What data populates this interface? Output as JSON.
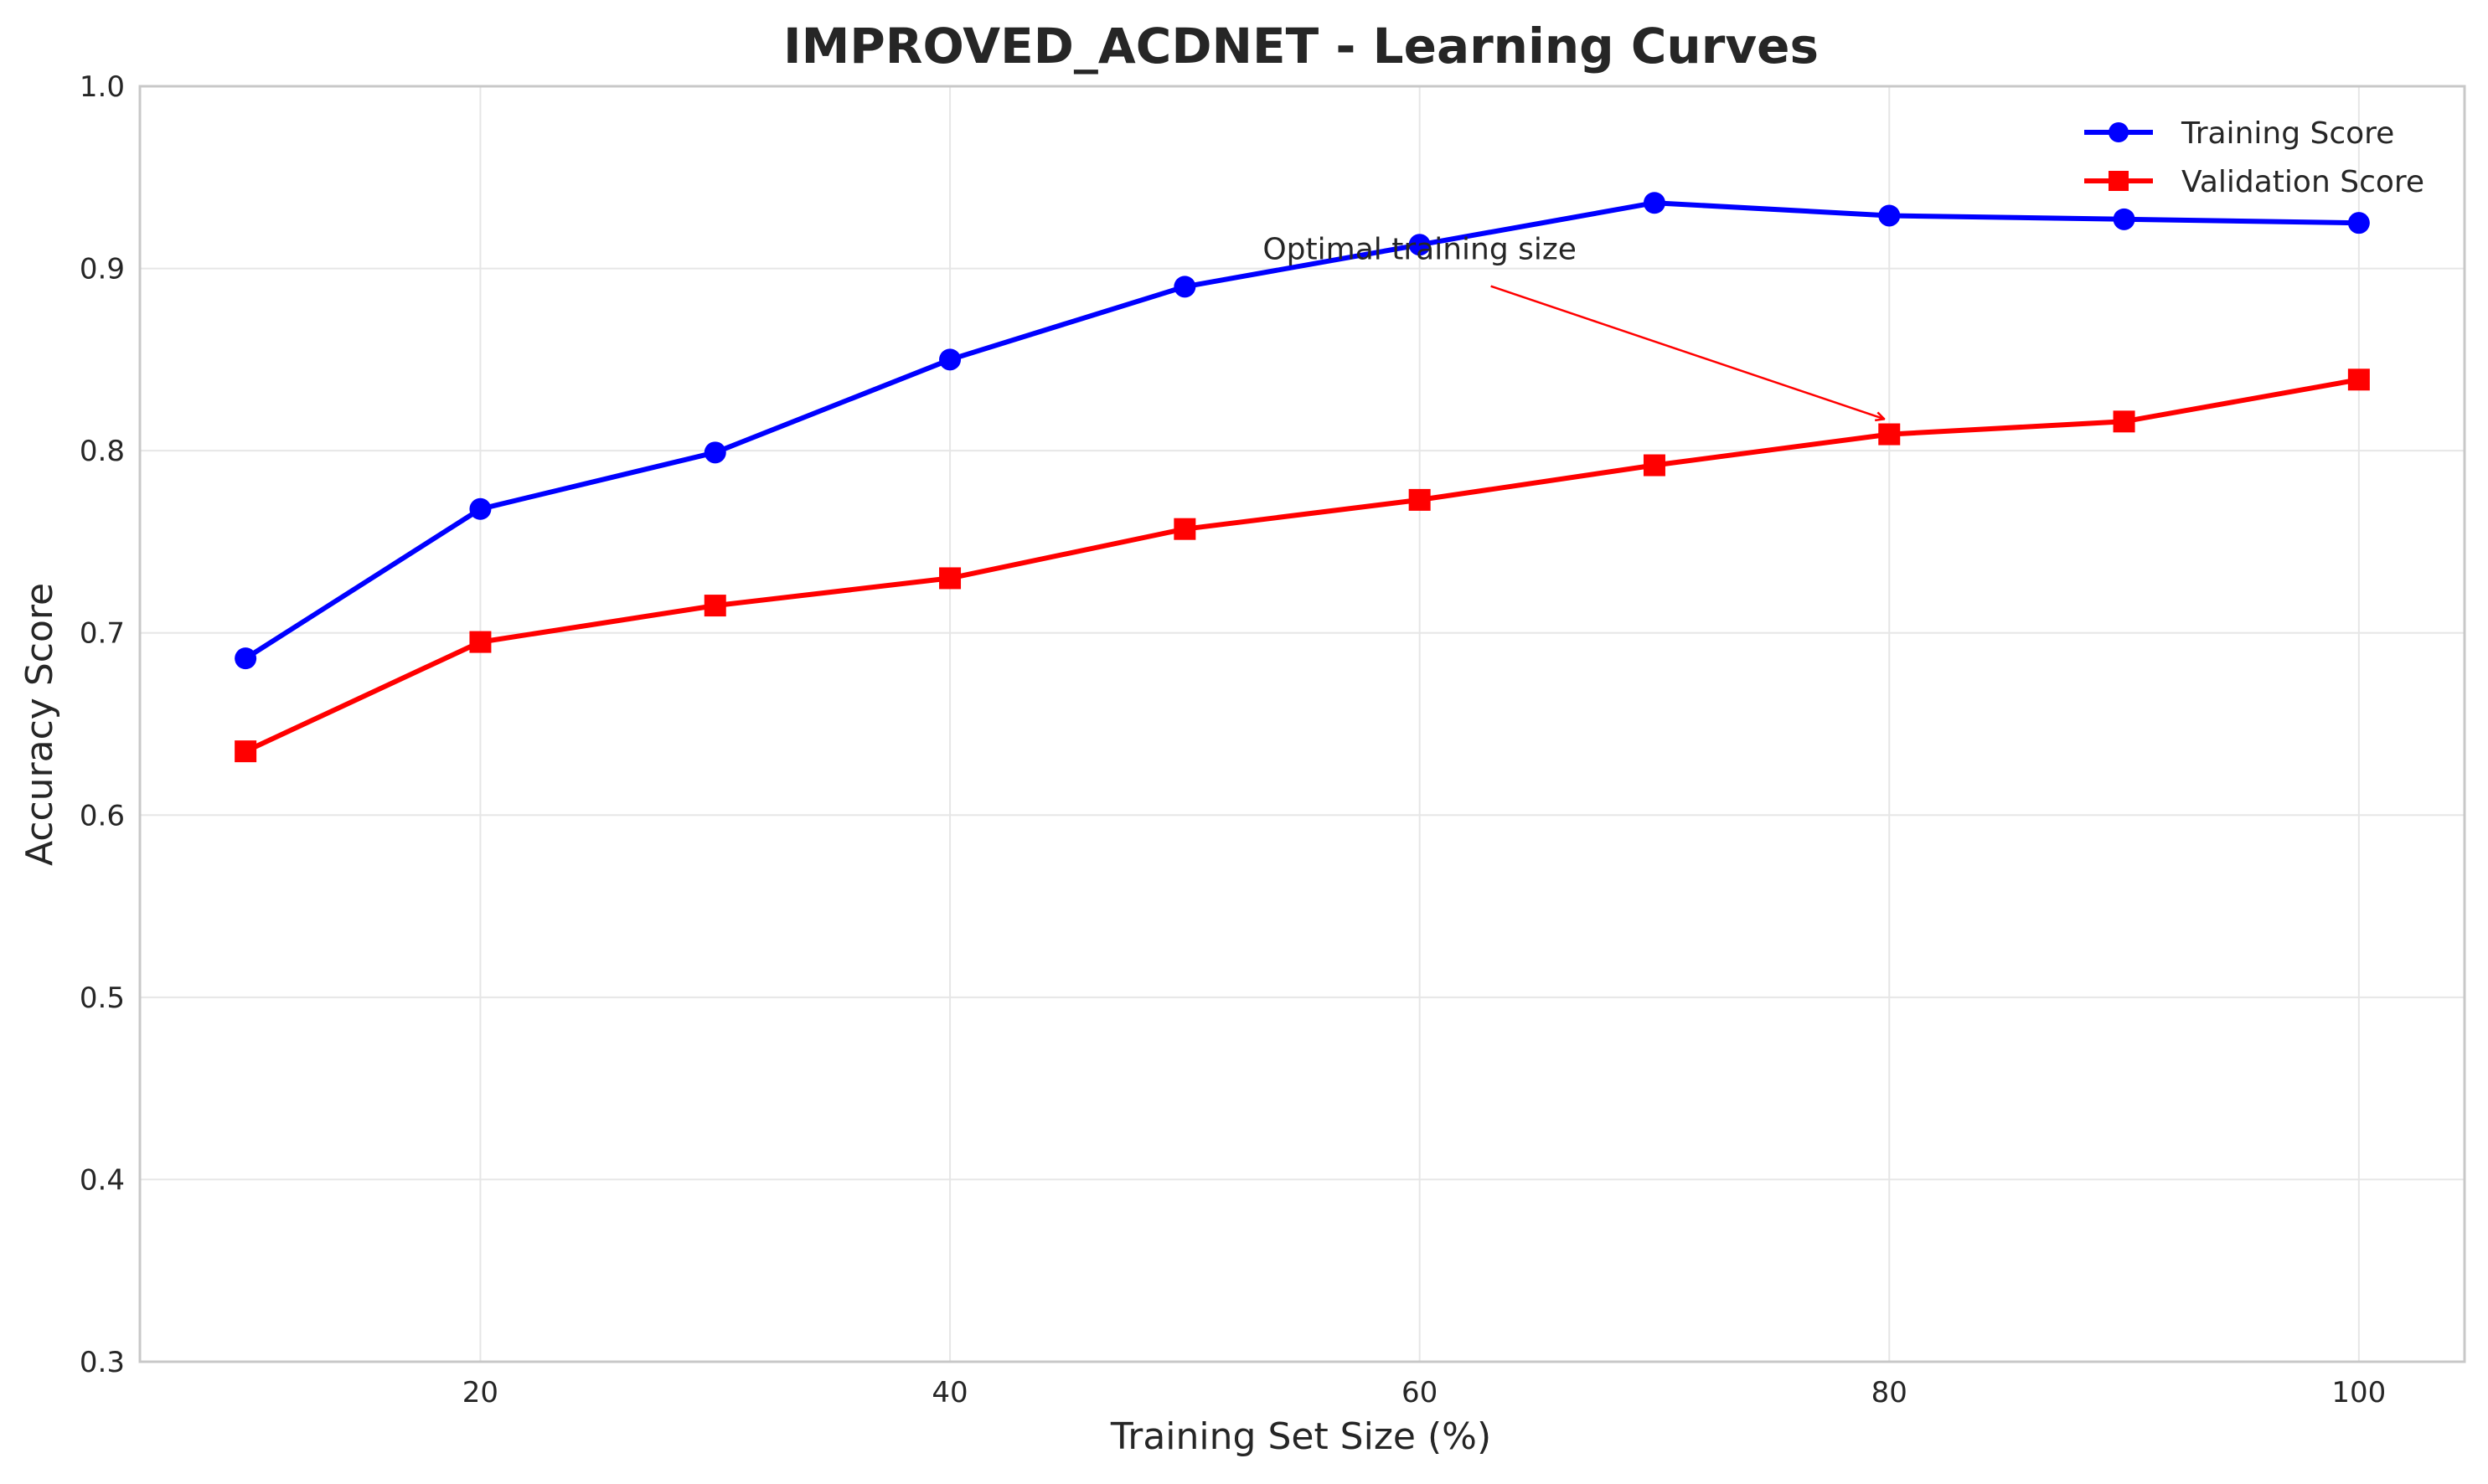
{
  "chart_data": {
    "type": "line",
    "title": "IMPROVED_ACDNET - Learning Curves",
    "xlabel": "Training Set Size (%)",
    "ylabel": "Accuracy Score",
    "xlim": [
      5.5,
      104.5
    ],
    "ylim": [
      0.3,
      1.0
    ],
    "xticks": [
      20,
      40,
      60,
      80,
      100
    ],
    "yticks": [
      0.3,
      0.4,
      0.5,
      0.6,
      0.7,
      0.8,
      0.9,
      1.0
    ],
    "grid": true,
    "legend_position": "top-right",
    "x": [
      10,
      20,
      30,
      40,
      50,
      60,
      70,
      80,
      90,
      100
    ],
    "series": [
      {
        "name": "Training Score",
        "color": "#0000ff",
        "marker": "circle",
        "values": [
          0.686,
          0.768,
          0.799,
          0.85,
          0.89,
          0.913,
          0.936,
          0.929,
          0.927,
          0.925
        ]
      },
      {
        "name": "Validation Score",
        "color": "#ff0000",
        "marker": "square",
        "values": [
          0.635,
          0.695,
          0.715,
          0.73,
          0.757,
          0.773,
          0.792,
          0.809,
          0.816,
          0.839
        ]
      }
    ],
    "annotations": [
      {
        "text": "Optimal training size",
        "text_x": 60,
        "text_y": 0.905,
        "arrow_x": 80,
        "arrow_y": 0.816,
        "color": "#ff0000"
      }
    ]
  }
}
